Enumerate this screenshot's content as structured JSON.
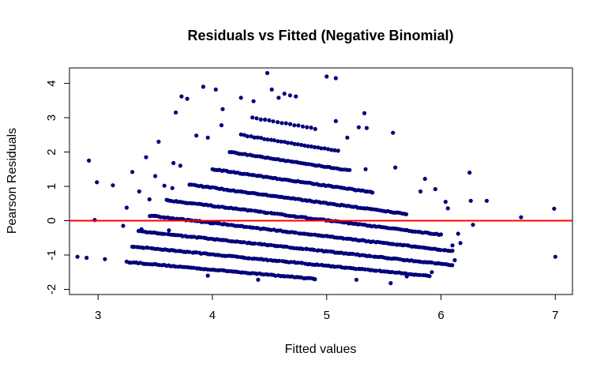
{
  "chart_data": {
    "type": "scatter",
    "title": "Residuals vs Fitted (Negative Binomial)",
    "xlabel": "Fitted values",
    "ylabel": "Pearson Residuals",
    "xlim": [
      2.75,
      7.15
    ],
    "ylim": [
      -2.15,
      4.45
    ],
    "x_ticks": [
      3,
      4,
      5,
      6,
      7
    ],
    "y_ticks": [
      -2,
      -1,
      0,
      1,
      2,
      3,
      4
    ],
    "reference_line": {
      "y": 0,
      "color": "#ff0000"
    },
    "point_color": "#00007a",
    "grid": false,
    "bands": [
      {
        "x_start": 3.25,
        "x_end": 4.9,
        "y_start": -1.2,
        "slope": -0.3,
        "count": 82
      },
      {
        "x_start": 3.3,
        "x_end": 5.9,
        "y_start": -0.75,
        "slope": -0.33,
        "count": 130
      },
      {
        "x_start": 3.35,
        "x_end": 6.1,
        "y_start": -0.3,
        "slope": -0.36,
        "count": 140
      },
      {
        "x_start": 3.45,
        "x_end": 6.1,
        "y_start": 0.15,
        "slope": -0.39,
        "count": 135
      },
      {
        "x_start": 3.6,
        "x_end": 6.0,
        "y_start": 0.6,
        "slope": -0.42,
        "count": 120
      },
      {
        "x_start": 3.8,
        "x_end": 5.7,
        "y_start": 1.05,
        "slope": -0.45,
        "count": 95
      },
      {
        "x_start": 4.0,
        "x_end": 5.4,
        "y_start": 1.5,
        "slope": -0.48,
        "count": 70
      },
      {
        "x_start": 4.15,
        "x_end": 5.2,
        "y_start": 2.0,
        "slope": -0.51,
        "count": 48
      },
      {
        "x_start": 4.25,
        "x_end": 5.1,
        "y_start": 2.5,
        "slope": -0.55,
        "count": 30
      },
      {
        "x_start": 4.35,
        "x_end": 4.9,
        "y_start": 3.0,
        "slope": -0.58,
        "count": 16
      }
    ],
    "extra_points": [
      [
        2.82,
        -1.05
      ],
      [
        2.9,
        -1.08
      ],
      [
        2.92,
        1.75
      ],
      [
        2.97,
        0.02
      ],
      [
        2.99,
        1.12
      ],
      [
        3.06,
        -1.12
      ],
      [
        3.13,
        1.03
      ],
      [
        3.22,
        -0.15
      ],
      [
        3.25,
        0.38
      ],
      [
        3.3,
        1.42
      ],
      [
        3.36,
        0.85
      ],
      [
        3.38,
        -0.25
      ],
      [
        3.42,
        1.85
      ],
      [
        3.45,
        0.62
      ],
      [
        3.5,
        1.3
      ],
      [
        3.53,
        2.3
      ],
      [
        3.58,
        1.02
      ],
      [
        3.62,
        -0.28
      ],
      [
        3.65,
        0.95
      ],
      [
        3.66,
        1.68
      ],
      [
        3.68,
        3.15
      ],
      [
        3.72,
        1.6
      ],
      [
        3.73,
        3.62
      ],
      [
        3.78,
        3.55
      ],
      [
        3.86,
        2.48
      ],
      [
        3.92,
        3.9
      ],
      [
        3.96,
        2.42
      ],
      [
        4.03,
        3.82
      ],
      [
        4.08,
        2.78
      ],
      [
        4.09,
        3.25
      ],
      [
        4.25,
        3.58
      ],
      [
        4.36,
        3.48
      ],
      [
        4.48,
        4.3
      ],
      [
        4.52,
        3.82
      ],
      [
        4.58,
        3.58
      ],
      [
        4.63,
        3.7
      ],
      [
        4.68,
        3.65
      ],
      [
        4.73,
        3.62
      ],
      [
        5.0,
        4.2
      ],
      [
        5.08,
        4.15
      ],
      [
        5.08,
        2.9
      ],
      [
        5.18,
        2.42
      ],
      [
        5.28,
        2.72
      ],
      [
        5.33,
        3.13
      ],
      [
        5.35,
        2.7
      ],
      [
        5.34,
        1.5
      ],
      [
        5.58,
        2.56
      ],
      [
        5.6,
        1.55
      ],
      [
        5.82,
        0.85
      ],
      [
        5.86,
        1.22
      ],
      [
        5.95,
        0.92
      ],
      [
        6.04,
        0.55
      ],
      [
        6.06,
        0.36
      ],
      [
        6.1,
        -0.72
      ],
      [
        6.12,
        -1.15
      ],
      [
        6.15,
        -0.38
      ],
      [
        6.17,
        -0.65
      ],
      [
        6.25,
        1.4
      ],
      [
        6.26,
        0.58
      ],
      [
        6.28,
        -0.12
      ],
      [
        6.4,
        0.58
      ],
      [
        6.7,
        0.1
      ],
      [
        6.99,
        0.35
      ],
      [
        7.0,
        -1.05
      ],
      [
        5.56,
        -1.82
      ],
      [
        5.7,
        -1.62
      ],
      [
        5.92,
        -1.5
      ],
      [
        5.26,
        -1.72
      ],
      [
        4.4,
        -1.72
      ],
      [
        3.96,
        -1.6
      ]
    ]
  }
}
